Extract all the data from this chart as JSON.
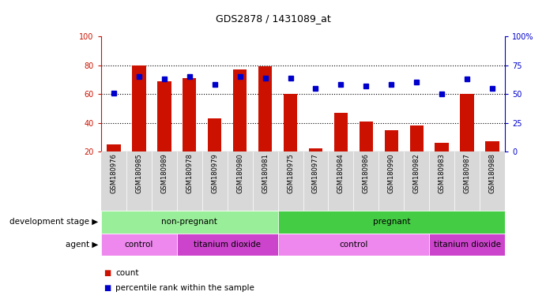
{
  "title": "GDS2878 / 1431089_at",
  "samples": [
    "GSM180976",
    "GSM180985",
    "GSM180989",
    "GSM180978",
    "GSM180979",
    "GSM180980",
    "GSM180981",
    "GSM180975",
    "GSM180977",
    "GSM180984",
    "GSM180986",
    "GSM180990",
    "GSM180982",
    "GSM180983",
    "GSM180987",
    "GSM180988"
  ],
  "counts": [
    25,
    80,
    69,
    71,
    43,
    77,
    79,
    60,
    22,
    47,
    41,
    35,
    38,
    26,
    60,
    27
  ],
  "percentiles": [
    51,
    65,
    63,
    65,
    58,
    65,
    64,
    64,
    55,
    58,
    57,
    58,
    60,
    50,
    63,
    55
  ],
  "ylim_left": [
    20,
    100
  ],
  "ylim_right": [
    0,
    100
  ],
  "yticks_left": [
    20,
    40,
    60,
    80,
    100
  ],
  "yticks_right": [
    0,
    25,
    50,
    75,
    100
  ],
  "ytick_right_labels": [
    "0",
    "25",
    "50",
    "75",
    "100%"
  ],
  "bar_color": "#cc1100",
  "dot_color": "#0000cc",
  "bg_color": "#ffffff",
  "tick_area_bg": "#d8d8d8",
  "dev_stage_row": {
    "label": "development stage",
    "groups": [
      {
        "text": "non-pregnant",
        "start": 0,
        "end": 7,
        "color": "#99ee99"
      },
      {
        "text": "pregnant",
        "start": 7,
        "end": 16,
        "color": "#44cc44"
      }
    ]
  },
  "agent_row": {
    "label": "agent",
    "groups": [
      {
        "text": "control",
        "start": 0,
        "end": 3,
        "color": "#ee88ee"
      },
      {
        "text": "titanium dioxide",
        "start": 3,
        "end": 7,
        "color": "#cc44cc"
      },
      {
        "text": "control",
        "start": 7,
        "end": 13,
        "color": "#ee88ee"
      },
      {
        "text": "titanium dioxide",
        "start": 13,
        "end": 16,
        "color": "#cc44cc"
      }
    ]
  }
}
